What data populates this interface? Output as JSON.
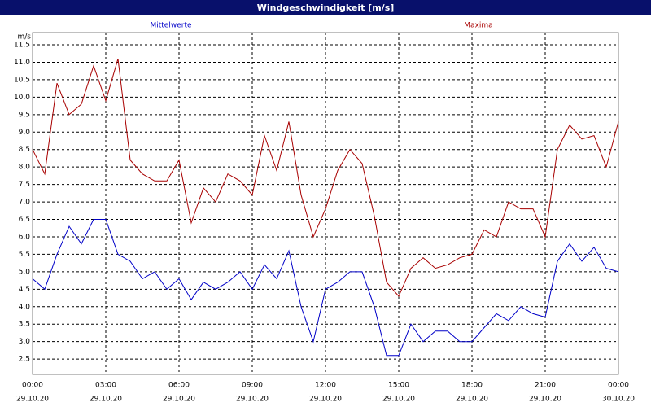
{
  "chart_data": {
    "type": "line",
    "title": "Windgeschwindigkeit [m/s]",
    "y_unit": "m/s",
    "x": [
      0,
      0.5,
      1,
      1.5,
      2,
      2.5,
      3,
      3.5,
      4,
      4.5,
      5,
      5.5,
      6,
      6.5,
      7,
      7.5,
      8,
      8.5,
      9,
      9.5,
      10,
      10.5,
      11,
      11.5,
      12,
      12.5,
      13,
      13.5,
      14,
      14.5,
      15,
      15.5,
      16,
      16.5,
      17,
      17.5,
      18,
      18.5,
      19,
      19.5,
      20,
      20.5,
      21,
      21.5,
      22,
      22.5,
      23,
      23.5,
      24
    ],
    "series": [
      {
        "name": "Mittelwerte",
        "color": "#0000c8",
        "values": [
          4.8,
          4.5,
          5.5,
          6.3,
          5.8,
          6.5,
          6.5,
          5.5,
          5.3,
          4.8,
          5.0,
          4.5,
          4.8,
          4.2,
          4.7,
          4.5,
          4.7,
          5.0,
          4.5,
          5.2,
          4.8,
          5.6,
          4.0,
          3.0,
          4.5,
          4.7,
          5.0,
          5.0,
          4.0,
          2.6,
          2.6,
          3.5,
          3.0,
          3.3,
          3.3,
          3.0,
          3.0,
          3.4,
          3.8,
          3.6,
          4.0,
          3.8,
          3.7,
          5.3,
          5.8,
          5.3,
          5.7,
          5.1,
          5.0
        ]
      },
      {
        "name": "Maxima",
        "color": "#a80000",
        "values": [
          8.5,
          7.8,
          10.4,
          9.5,
          9.8,
          10.9,
          9.9,
          11.1,
          8.2,
          7.8,
          7.6,
          7.6,
          8.2,
          6.4,
          7.4,
          7.0,
          7.8,
          7.6,
          7.2,
          8.9,
          7.9,
          9.3,
          7.2,
          6.0,
          6.8,
          7.9,
          8.5,
          8.1,
          6.6,
          4.7,
          4.3,
          5.1,
          5.4,
          5.1,
          5.2,
          5.4,
          5.5,
          6.2,
          6.0,
          7.0,
          6.8,
          6.8,
          6.0,
          8.5,
          9.2,
          8.8,
          8.9,
          8.0,
          9.3
        ]
      }
    ],
    "xlim": [
      0,
      24
    ],
    "xticks": [
      {
        "value": 0,
        "label": "00:00"
      },
      {
        "value": 3,
        "label": "03:00"
      },
      {
        "value": 6,
        "label": "06:00"
      },
      {
        "value": 9,
        "label": "09:00"
      },
      {
        "value": 12,
        "label": "12:00"
      },
      {
        "value": 15,
        "label": "15:00"
      },
      {
        "value": 18,
        "label": "18:00"
      },
      {
        "value": 21,
        "label": "21:00"
      },
      {
        "value": 24,
        "label": "00:00"
      }
    ],
    "xtick_dates": [
      "29.10.20",
      "29.10.20",
      "29.10.20",
      "29.10.20",
      "29.10.20",
      "29.10.20",
      "29.10.20",
      "29.10.20",
      "30.10.20"
    ],
    "ylim": [
      2.06,
      11.85
    ],
    "yticks": [
      {
        "value": 2.5,
        "label": "2,5"
      },
      {
        "value": 3,
        "label": "3,0"
      },
      {
        "value": 3.5,
        "label": "3,5"
      },
      {
        "value": 4,
        "label": "4,0"
      },
      {
        "value": 4.5,
        "label": "4,5"
      },
      {
        "value": 5,
        "label": "5,0"
      },
      {
        "value": 5.5,
        "label": "5,5"
      },
      {
        "value": 6,
        "label": "6,0"
      },
      {
        "value": 6.5,
        "label": "6,5"
      },
      {
        "value": 7,
        "label": "7,0"
      },
      {
        "value": 7.5,
        "label": "7,5"
      },
      {
        "value": 8,
        "label": "8,0"
      },
      {
        "value": 8.5,
        "label": "8,5"
      },
      {
        "value": 9,
        "label": "9,0"
      },
      {
        "value": 9.5,
        "label": "9,5"
      },
      {
        "value": 10,
        "label": "10,0"
      },
      {
        "value": 10.5,
        "label": "10,5"
      },
      {
        "value": 11,
        "label": "11,0"
      },
      {
        "value": 11.5,
        "label": "11,5"
      }
    ],
    "grid": true
  }
}
